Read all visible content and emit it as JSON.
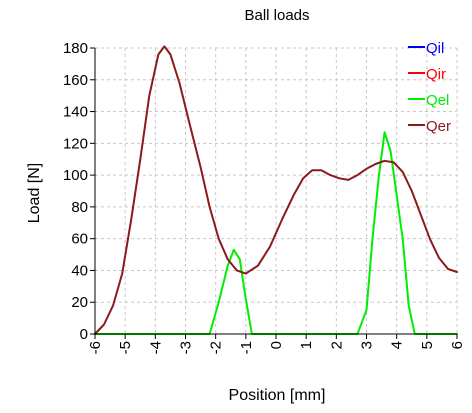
{
  "chart_data": {
    "type": "line",
    "title": "Ball loads",
    "xlabel": "Position [mm]",
    "ylabel": "Load [N]",
    "xlim": [
      -6,
      6
    ],
    "ylim": [
      0,
      180
    ],
    "xticks": [
      "-6",
      "-5",
      "-4",
      "-3",
      "-2",
      "-1",
      "0",
      "1",
      "2",
      "3",
      "4",
      "5",
      "6"
    ],
    "yticks": [
      "0",
      "20",
      "40",
      "60",
      "80",
      "100",
      "120",
      "140",
      "160",
      "180"
    ],
    "grid": true,
    "legend_position": "top-right",
    "series": [
      {
        "name": "Qil",
        "color": "#0000ff",
        "points": []
      },
      {
        "name": "Qir",
        "color": "#ff0000",
        "points": []
      },
      {
        "name": "Qel",
        "color": "#00ee00",
        "points": [
          [
            -6,
            0
          ],
          [
            -2.2,
            0
          ],
          [
            -1.9,
            20
          ],
          [
            -1.6,
            43
          ],
          [
            -1.4,
            53
          ],
          [
            -1.2,
            47
          ],
          [
            -1.0,
            22
          ],
          [
            -0.8,
            0
          ],
          [
            2.7,
            0
          ],
          [
            3.0,
            15
          ],
          [
            3.2,
            60
          ],
          [
            3.4,
            98
          ],
          [
            3.6,
            127
          ],
          [
            3.8,
            115
          ],
          [
            4.2,
            60
          ],
          [
            4.4,
            18
          ],
          [
            4.6,
            0
          ],
          [
            6,
            0
          ]
        ]
      },
      {
        "name": "Qer",
        "color": "#8b1a1a",
        "points": [
          [
            -6.0,
            0
          ],
          [
            -5.7,
            6
          ],
          [
            -5.4,
            18
          ],
          [
            -5.1,
            38
          ],
          [
            -4.8,
            72
          ],
          [
            -4.5,
            110
          ],
          [
            -4.2,
            150
          ],
          [
            -3.9,
            176
          ],
          [
            -3.7,
            181
          ],
          [
            -3.5,
            176
          ],
          [
            -3.2,
            158
          ],
          [
            -2.9,
            135
          ],
          [
            -2.5,
            105
          ],
          [
            -2.2,
            80
          ],
          [
            -1.9,
            60
          ],
          [
            -1.6,
            47
          ],
          [
            -1.3,
            40
          ],
          [
            -1.0,
            38
          ],
          [
            -0.6,
            43
          ],
          [
            -0.2,
            55
          ],
          [
            0.2,
            72
          ],
          [
            0.6,
            88
          ],
          [
            0.9,
            98
          ],
          [
            1.2,
            103
          ],
          [
            1.5,
            103
          ],
          [
            1.8,
            100
          ],
          [
            2.1,
            98
          ],
          [
            2.4,
            97
          ],
          [
            2.7,
            100
          ],
          [
            3.0,
            104
          ],
          [
            3.3,
            107
          ],
          [
            3.6,
            109
          ],
          [
            3.9,
            108
          ],
          [
            4.2,
            102
          ],
          [
            4.5,
            90
          ],
          [
            4.8,
            75
          ],
          [
            5.1,
            60
          ],
          [
            5.4,
            48
          ],
          [
            5.7,
            41
          ],
          [
            6.0,
            39
          ]
        ]
      }
    ]
  }
}
